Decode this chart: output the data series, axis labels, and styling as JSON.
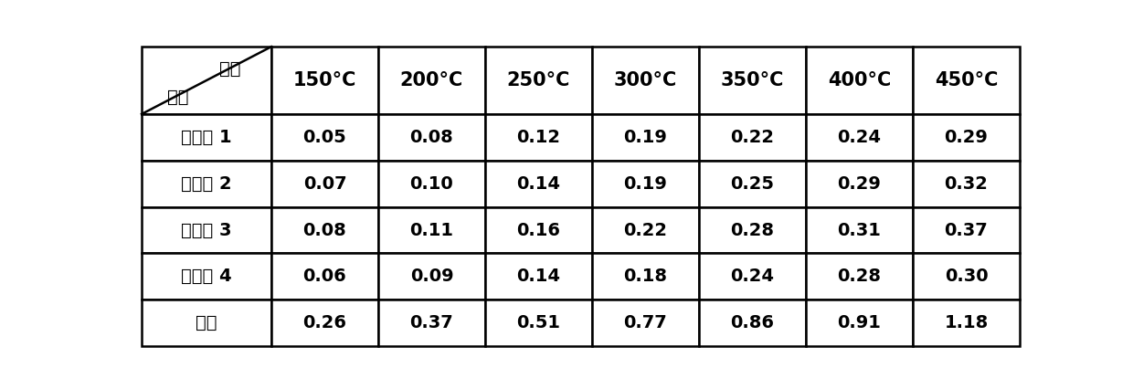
{
  "col_headers": [
    "150°C",
    "200°C",
    "250°C",
    "300°C",
    "350°C",
    "400°C",
    "450°C"
  ],
  "row_headers": [
    "实施例 1",
    "实施例 2",
    "实施例 3",
    "实施例 4",
    "对比"
  ],
  "data": [
    [
      "0.05",
      "0.08",
      "0.12",
      "0.19",
      "0.22",
      "0.24",
      "0.29"
    ],
    [
      "0.07",
      "0.10",
      "0.14",
      "0.19",
      "0.25",
      "0.29",
      "0.32"
    ],
    [
      "0.08",
      "0.11",
      "0.16",
      "0.22",
      "0.28",
      "0.31",
      "0.37"
    ],
    [
      "0.06",
      "0.09",
      "0.14",
      "0.18",
      "0.24",
      "0.28",
      "0.30"
    ],
    [
      "0.26",
      "0.37",
      "0.51",
      "0.77",
      "0.86",
      "0.91",
      "1.18"
    ]
  ],
  "header_top_left_text1": "温度",
  "header_top_left_text2": "样品",
  "bg_color": "#ffffff",
  "text_color": "#000000",
  "line_color": "#000000",
  "font_size": 14,
  "header_font_size": 15
}
